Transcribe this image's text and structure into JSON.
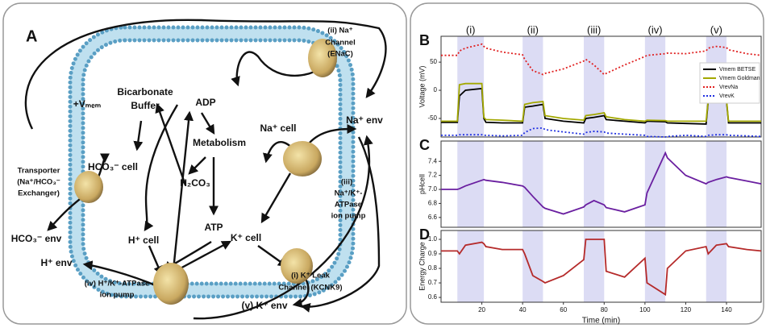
{
  "diagram": {
    "panel_label": "A",
    "labels": [
      "+Vₘₑₘ",
      "Bicarbonate",
      "Buffer",
      "ADP",
      "Na⁺ cell",
      "Na⁺ env",
      "(ii) Na⁺",
      "Channel",
      "(ENaC)",
      "HCO₃⁻ cell",
      "Metabolism",
      "(iii)",
      "Na⁺/K⁺-",
      "ATPase",
      "ion pump",
      "Transporter",
      "(Na⁺/HCO₃⁻",
      "Exchanger)",
      "H₂CO₃",
      "ATP",
      "H⁺ cell",
      "K⁺ cell",
      "HCO₃⁻ env",
      "H⁺ env",
      "(i) K⁺ Leak",
      "Channel (KCNK9)",
      "(iv) H⁺/K⁺-ATPase",
      "ion pump",
      "(v) K⁺ env"
    ]
  },
  "chart_data": [
    {
      "type": "line",
      "panel_label": "B",
      "y_label": "Voltage (mV)",
      "highlights": [
        {
          "label": "(i)",
          "range": [
            8,
            21
          ]
        },
        {
          "label": "(ii)",
          "range": [
            40,
            50
          ]
        },
        {
          "label": "(iii)",
          "range": [
            70,
            80
          ]
        },
        {
          "label": "(iv)",
          "range": [
            100,
            110
          ]
        },
        {
          "label": "(v)",
          "range": [
            130,
            140
          ]
        }
      ],
      "x": [
        0,
        8,
        9,
        12,
        20,
        21,
        22,
        30,
        40,
        41,
        45,
        50,
        51,
        60,
        70,
        71,
        75,
        80,
        81,
        90,
        100,
        101,
        110,
        111,
        120,
        130,
        131,
        135,
        140,
        141,
        150,
        157
      ],
      "xlim": [
        0,
        157
      ],
      "ylim": [
        -83,
        96
      ],
      "yticks": [
        -50,
        0,
        50
      ],
      "series": [
        {
          "name": "Vmem BETSE",
          "color": "#000000",
          "style": "solid",
          "values": [
            -57,
            -57,
            -10,
            0,
            3,
            -50,
            -57,
            -58,
            -58,
            -30,
            -28,
            -25,
            -50,
            -55,
            -58,
            -50,
            -48,
            -45,
            -52,
            -55,
            -58,
            -55,
            -56,
            -58,
            -59,
            -60,
            -20,
            -18,
            -18,
            -58,
            -58,
            -58
          ]
        },
        {
          "name": "Vmem Goldman",
          "color": "#a3a800",
          "style": "solid",
          "values": [
            -55,
            -55,
            10,
            12,
            12,
            -48,
            -52,
            -53,
            -55,
            -25,
            -22,
            -20,
            -45,
            -50,
            -53,
            -45,
            -43,
            -40,
            -47,
            -52,
            -55,
            -53,
            -54,
            -55,
            -55,
            -55,
            -18,
            -16,
            -16,
            -55,
            -55,
            -55
          ]
        },
        {
          "name": "VrevNa",
          "color": "#e02020",
          "style": "dotted",
          "values": [
            62,
            62,
            70,
            75,
            82,
            78,
            75,
            68,
            63,
            55,
            35,
            28,
            30,
            38,
            52,
            55,
            45,
            28,
            30,
            45,
            60,
            62,
            65,
            66,
            65,
            70,
            75,
            78,
            76,
            72,
            65,
            62
          ]
        },
        {
          "name": "VrevK",
          "color": "#2030e0",
          "style": "dotted",
          "values": [
            -80,
            -80,
            -79,
            -79,
            -79,
            -80,
            -80,
            -81,
            -80,
            -75,
            -68,
            -67,
            -70,
            -74,
            -78,
            -75,
            -73,
            -74,
            -76,
            -78,
            -80,
            -82,
            -83,
            -82,
            -80,
            -82,
            -80,
            -79,
            -79,
            -80,
            -81,
            -82
          ]
        }
      ]
    },
    {
      "type": "line",
      "panel_label": "C",
      "y_label": "pHcell",
      "x": [
        0,
        8,
        9,
        12,
        20,
        21,
        22,
        30,
        40,
        41,
        45,
        50,
        51,
        60,
        70,
        71,
        75,
        80,
        81,
        90,
        100,
        101,
        110,
        111,
        120,
        130,
        131,
        135,
        140,
        141,
        150,
        157
      ],
      "xlim": [
        0,
        157
      ],
      "ylim": [
        6.46,
        7.69
      ],
      "yticks": [
        6.6,
        6.8,
        {
          "value": 7,
          "label": "7.0"
        },
        7.2,
        7.4
      ],
      "series": [
        {
          "color": "#6a1fa0",
          "style": "solid",
          "values": [
            7.0,
            7.0,
            7.01,
            7.05,
            7.13,
            7.14,
            7.13,
            7.1,
            7.05,
            7.03,
            6.9,
            6.75,
            6.73,
            6.65,
            6.75,
            6.78,
            6.84,
            6.78,
            6.74,
            6.68,
            6.78,
            6.95,
            7.52,
            7.45,
            7.2,
            7.08,
            7.1,
            7.14,
            7.18,
            7.17,
            7.12,
            7.08
          ]
        }
      ]
    },
    {
      "type": "line",
      "panel_label": "D",
      "y_label": "Energy Charge",
      "x_label": "Time (min)",
      "x": [
        0,
        8,
        9,
        12,
        20,
        21,
        22,
        30,
        40,
        41,
        45,
        50,
        51,
        60,
        70,
        71,
        75,
        80,
        81,
        90,
        100,
        101,
        110,
        111,
        120,
        130,
        131,
        135,
        140,
        141,
        150,
        157
      ],
      "xlim": [
        0,
        157
      ],
      "xticks": [
        20,
        40,
        60,
        80,
        100,
        120,
        140
      ],
      "ylim": [
        0.567,
        1.061
      ],
      "yticks": [
        0.6,
        0.7,
        0.8,
        0.9,
        {
          "value": 1,
          "label": "1.0"
        }
      ],
      "series": [
        {
          "color": "#b52a2a",
          "style": "solid",
          "values": [
            0.92,
            0.92,
            0.9,
            0.96,
            0.98,
            0.97,
            0.95,
            0.93,
            0.93,
            0.9,
            0.75,
            0.71,
            0.7,
            0.75,
            0.86,
            1.0,
            1.0,
            1.0,
            0.78,
            0.74,
            0.87,
            0.7,
            0.62,
            0.8,
            0.92,
            0.95,
            0.9,
            0.96,
            0.97,
            0.95,
            0.93,
            0.92
          ]
        }
      ]
    }
  ]
}
